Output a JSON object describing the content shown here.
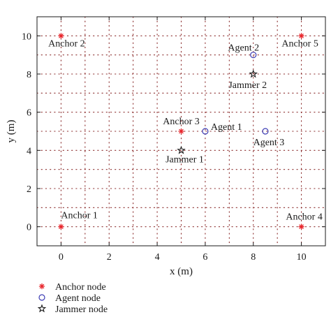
{
  "chart_data": {
    "type": "scatter",
    "title": "",
    "xlabel": "x (m)",
    "ylabel": "y (m)",
    "xlim": [
      -1,
      11
    ],
    "ylim": [
      -1,
      11
    ],
    "xticks": [
      0,
      2,
      4,
      6,
      8,
      10
    ],
    "yticks": [
      0,
      2,
      4,
      6,
      8,
      10
    ],
    "grid": true,
    "grid_style": "dotted",
    "legend_position": "below plot, left",
    "series": [
      {
        "name": "Anchor node",
        "marker": "asterisk",
        "color": "#e8262c",
        "points": [
          {
            "label": "Anchor 1",
            "x": 0,
            "y": 0
          },
          {
            "label": "Anchor 2",
            "x": 0,
            "y": 10
          },
          {
            "label": "Anchor 3",
            "x": 5,
            "y": 5
          },
          {
            "label": "Anchor 4",
            "x": 10,
            "y": 0
          },
          {
            "label": "Anchor 5",
            "x": 10,
            "y": 10
          }
        ]
      },
      {
        "name": "Agent node",
        "marker": "circle",
        "color": "#3c3cb4",
        "points": [
          {
            "label": "Agent 1",
            "x": 6,
            "y": 5
          },
          {
            "label": "Agent 2",
            "x": 8,
            "y": 9
          },
          {
            "label": "Agent 3",
            "x": 8.5,
            "y": 5
          }
        ]
      },
      {
        "name": "Jammer node",
        "marker": "star",
        "color": "#1a1a1a",
        "points": [
          {
            "label": "Jammer 1",
            "x": 5,
            "y": 4
          },
          {
            "label": "Jammer 2",
            "x": 8,
            "y": 8
          }
        ]
      }
    ]
  }
}
